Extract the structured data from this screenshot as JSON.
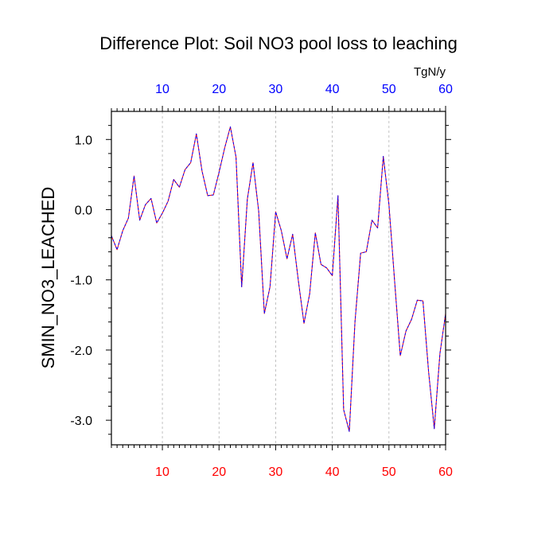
{
  "chart_data": {
    "type": "line",
    "title": "Difference Plot: Soil NO3 pool loss to leaching",
    "ylabel": "SMIN_NO3_LEACHED",
    "top_axis_unit": "TgN/y",
    "xlim": [
      1,
      60
    ],
    "ylim": [
      -3.35,
      1.4
    ],
    "x_ticks": [
      10,
      20,
      30,
      40,
      50,
      60
    ],
    "x_tick_labels": [
      "10",
      "20",
      "30",
      "40",
      "50",
      "60"
    ],
    "y_ticks": [
      1.0,
      0.0,
      -1.0,
      -2.0,
      -3.0
    ],
    "y_tick_labels": [
      "1.0",
      "0.0",
      "-1.0",
      "-2.0",
      "-3.0"
    ],
    "bottom_tick_color": "#ff0000",
    "top_tick_color": "#0000ff",
    "grid": "vertical dashed at major x ticks",
    "line_colors": [
      "#0000ff",
      "#ff0000"
    ],
    "series": [
      {
        "x": [
          1,
          2,
          3,
          4,
          5,
          6,
          7,
          8,
          9,
          10,
          11,
          12,
          13,
          14,
          15,
          16,
          17,
          18,
          19,
          20,
          21,
          22,
          23,
          24,
          25,
          26,
          27,
          28,
          29,
          30,
          31,
          32,
          33,
          34,
          35,
          36,
          37,
          38,
          39,
          40,
          41,
          42,
          43,
          44,
          45,
          46,
          47,
          48,
          49,
          50,
          51,
          52,
          53,
          54,
          55,
          56,
          57,
          58,
          59,
          60
        ],
        "values": [
          -0.37,
          -0.57,
          -0.3,
          -0.12,
          0.48,
          -0.15,
          0.07,
          0.16,
          -0.19,
          -0.05,
          0.12,
          0.43,
          0.32,
          0.57,
          0.67,
          1.08,
          0.55,
          0.2,
          0.21,
          0.53,
          0.88,
          1.18,
          0.75,
          -1.1,
          0.15,
          0.67,
          -0.02,
          -1.48,
          -1.1,
          -0.03,
          -0.3,
          -0.7,
          -0.35,
          -1.01,
          -1.62,
          -1.2,
          -0.33,
          -0.78,
          -0.83,
          -0.94,
          0.2,
          -2.85,
          -3.16,
          -1.6,
          -0.62,
          -0.6,
          -0.15,
          -0.26,
          0.76,
          0.07,
          -1.02,
          -2.08,
          -1.73,
          -1.56,
          -1.29,
          -1.3,
          -2.31,
          -3.12,
          -2.05,
          -1.48
        ]
      }
    ]
  }
}
